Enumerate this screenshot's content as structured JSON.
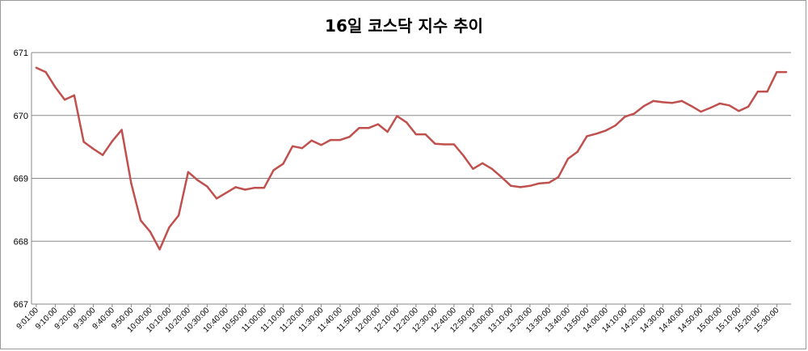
{
  "chart_data": {
    "type": "line",
    "title": "16일 코스닥 지수 추이",
    "xlabel": "",
    "ylabel": "",
    "ylim": [
      667,
      671
    ],
    "yticks": [
      "667",
      "668",
      "669",
      "670",
      "671"
    ],
    "grid": true,
    "legend": "none",
    "line_color": "#c0504d",
    "tick_labels": [
      "9:01:00",
      "9:10:00",
      "9:20:00",
      "9:30:00",
      "9:40:00",
      "9:50:00",
      "10:00:00",
      "10:10:00",
      "10:20:00",
      "10:30:00",
      "10:40:00",
      "10:50:00",
      "11:00:00",
      "11:10:00",
      "11:20:00",
      "11:30:00",
      "11:40:00",
      "11:50:00",
      "12:00:00",
      "12:10:00",
      "12:20:00",
      "12:30:00",
      "12:40:00",
      "12:50:00",
      "13:00:00",
      "13:10:00",
      "13:20:00",
      "13:30:00",
      "13:40:00",
      "13:50:00",
      "14:00:00",
      "14:10:00",
      "14:20:00",
      "14:30:00",
      "14:40:00",
      "14:50:00",
      "15:00:00",
      "15:10:00",
      "15:20:00",
      "15:30:00"
    ],
    "series": [
      {
        "values": [
          670.76,
          670.69,
          670.45,
          670.25,
          670.32,
          669.58,
          669.47,
          669.37,
          669.59,
          669.77,
          668.92,
          668.33,
          668.15,
          667.87,
          668.22,
          668.41,
          669.1,
          668.97,
          668.87,
          668.68,
          668.77,
          668.86,
          668.82,
          668.85,
          668.85,
          669.13,
          669.23,
          669.51,
          669.48,
          669.6,
          669.53,
          669.61,
          669.61,
          669.66,
          669.8,
          669.8,
          669.86,
          669.74,
          669.99,
          669.89,
          669.7,
          669.7,
          669.55,
          669.54,
          669.54,
          669.36,
          669.15,
          669.24,
          669.15,
          669.02,
          668.88,
          668.86,
          668.88,
          668.92,
          668.93,
          669.02,
          669.31,
          669.42,
          669.67,
          669.71,
          669.76,
          669.84,
          669.98,
          670.03,
          670.15,
          670.23,
          670.21,
          670.2,
          670.23,
          670.15,
          670.06,
          670.12,
          670.19,
          670.16,
          670.07,
          670.14,
          670.38,
          670.38,
          670.69,
          670.69
        ]
      }
    ]
  }
}
